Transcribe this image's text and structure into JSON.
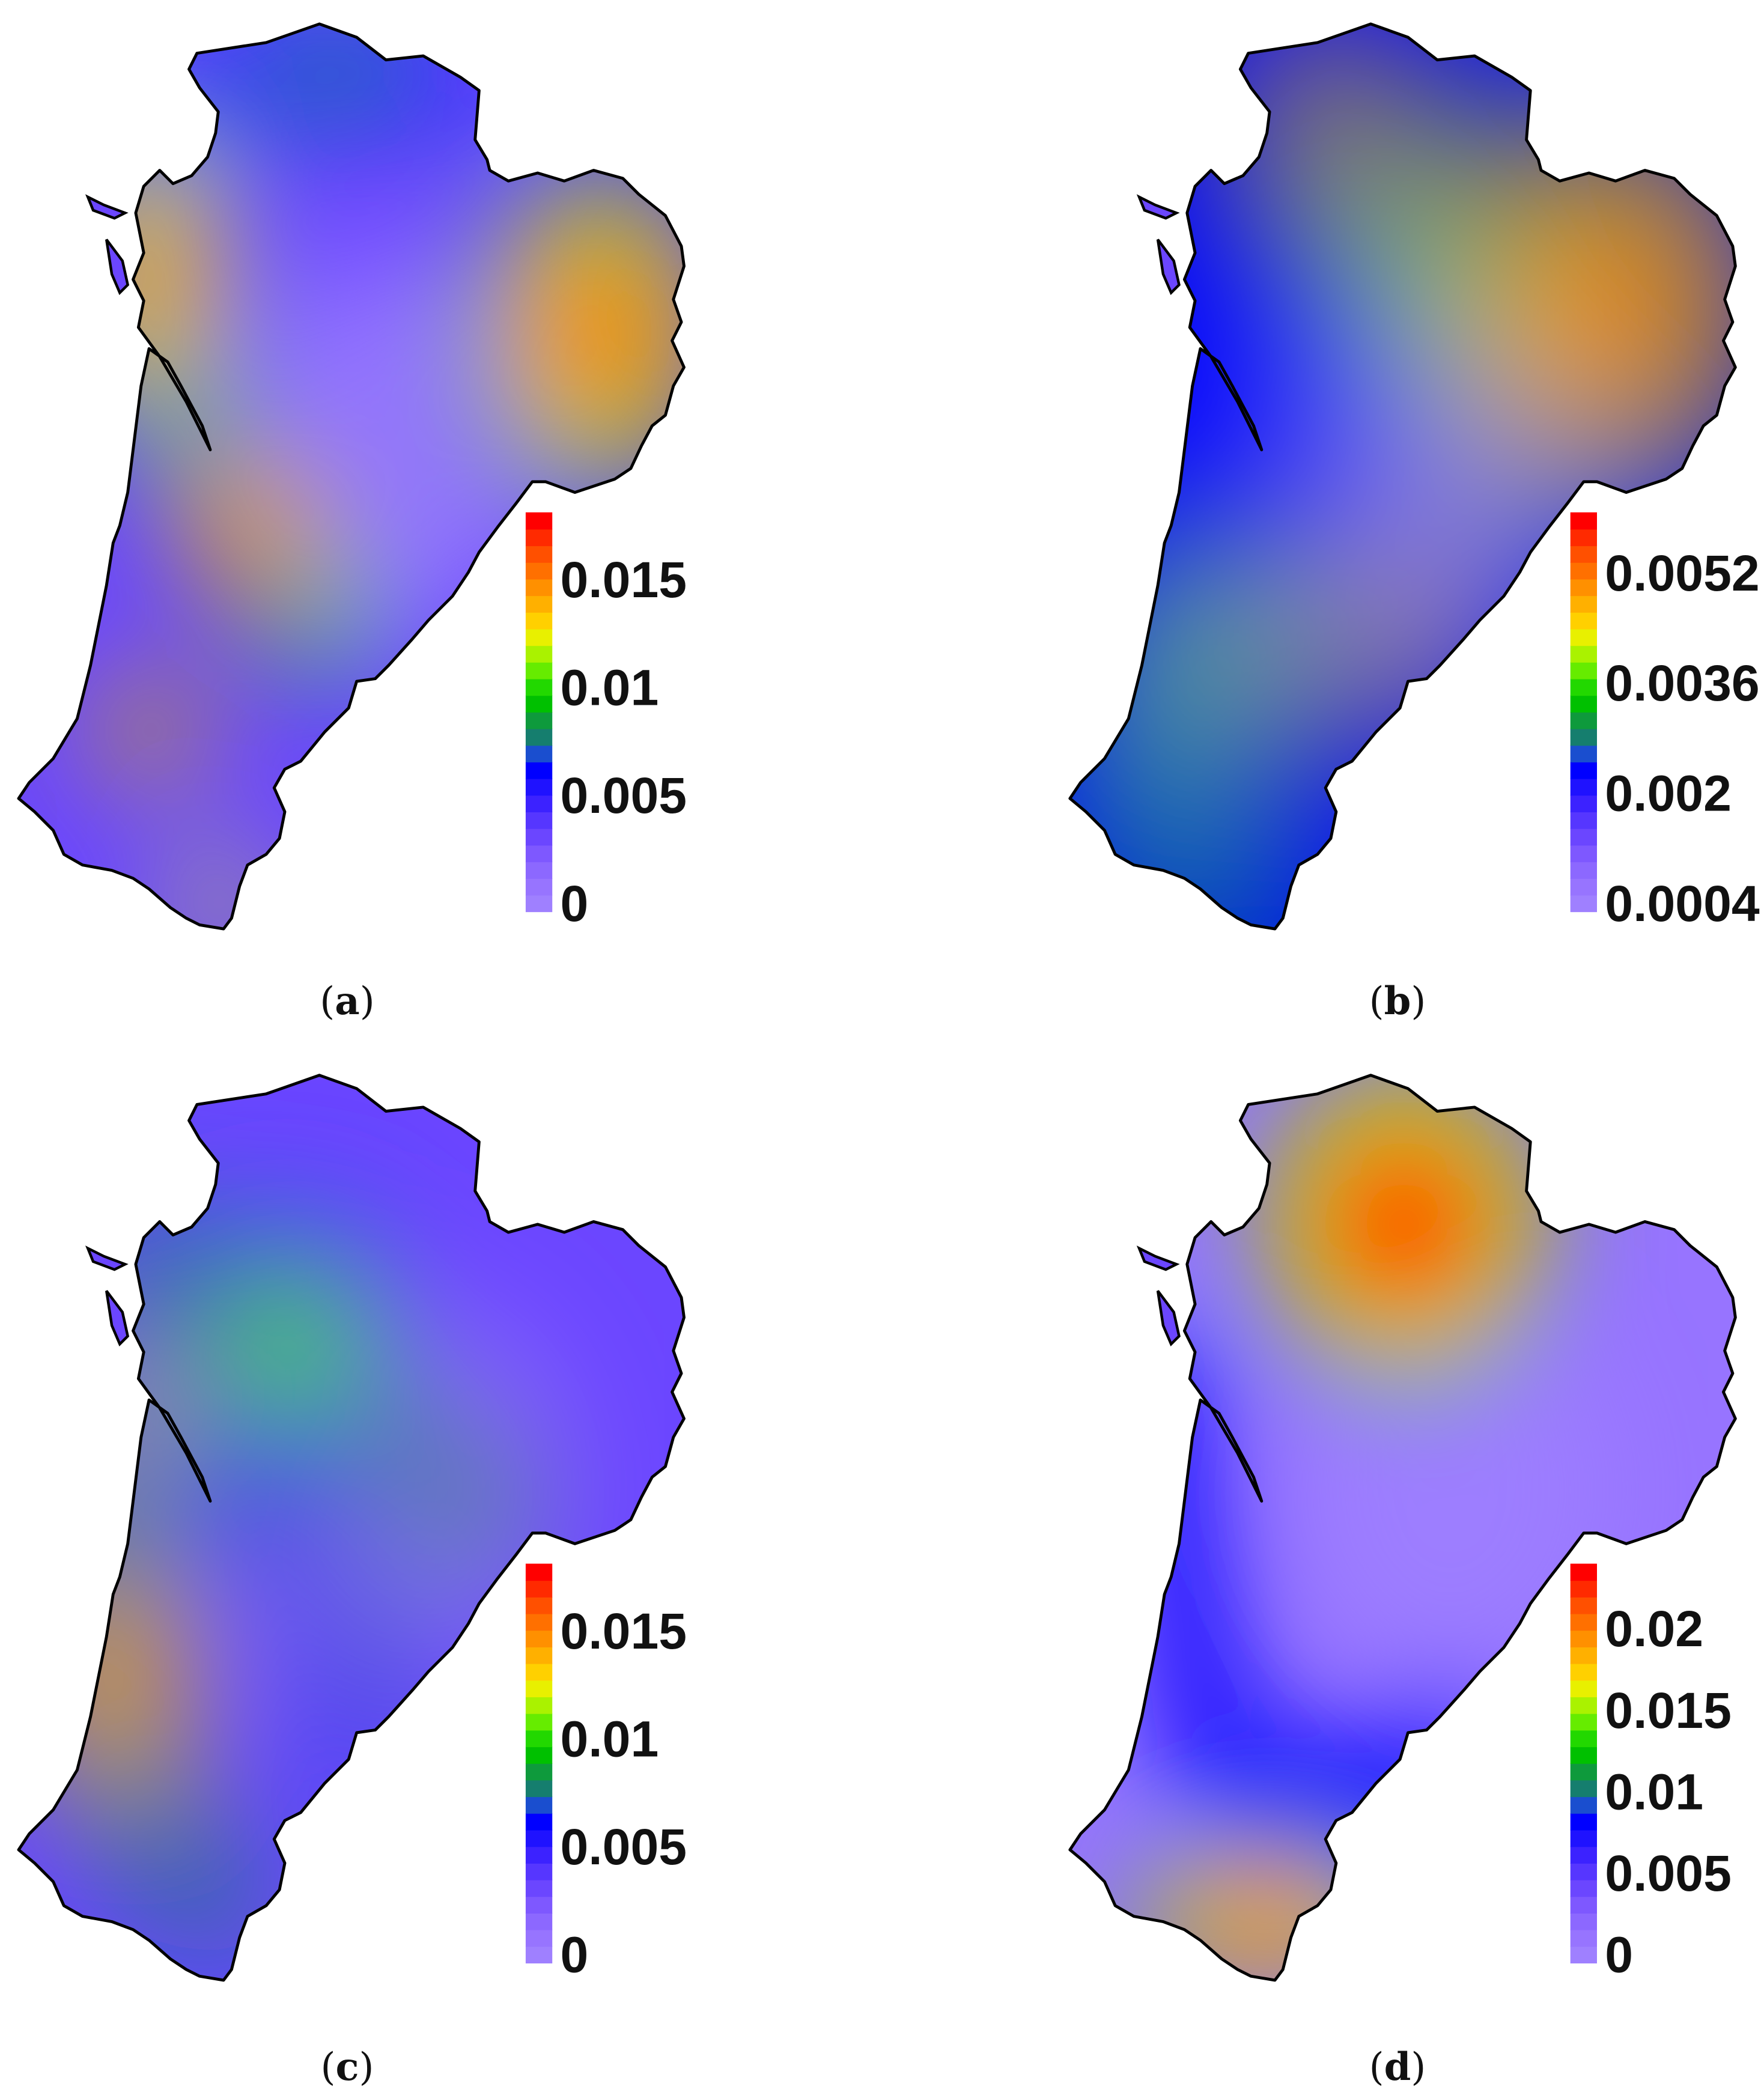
{
  "panels": [
    {
      "id": "a",
      "label": "a",
      "colorbar": {
        "min": 0,
        "max": 0.0185,
        "ticks": [
          {
            "value": 0,
            "label": "0"
          },
          {
            "value": 0.005,
            "label": "0.005"
          },
          {
            "value": 0.01,
            "label": "0.01"
          },
          {
            "value": 0.015,
            "label": "0.015"
          }
        ]
      },
      "hotspots": [
        {
          "name": "north-tip",
          "level": 0.45
        },
        {
          "name": "west-coast",
          "level": 0.85
        },
        {
          "name": "east",
          "level": 0.9
        },
        {
          "name": "center-diagonal",
          "level": 0.95
        },
        {
          "name": "southwest-spot",
          "level": 1.0
        },
        {
          "name": "south-tip",
          "level": 0.85
        }
      ]
    },
    {
      "id": "b",
      "label": "b",
      "colorbar": {
        "min": 0.0004,
        "max": 0.0062,
        "ticks": [
          {
            "value": 0.0004,
            "label": "0.0004"
          },
          {
            "value": 0.002,
            "label": "0.002"
          },
          {
            "value": 0.0036,
            "label": "0.0036"
          },
          {
            "value": 0.0052,
            "label": "0.0052"
          }
        ]
      },
      "hotspots": [
        {
          "name": "north",
          "level": 0.95
        },
        {
          "name": "east",
          "level": 1.0
        },
        {
          "name": "southeast",
          "level": 0.9
        },
        {
          "name": "southwest",
          "level": 0.65
        }
      ]
    },
    {
      "id": "c",
      "label": "c",
      "colorbar": {
        "min": 0,
        "max": 0.0185,
        "ticks": [
          {
            "value": 0,
            "label": "0"
          },
          {
            "value": 0.005,
            "label": "0.005"
          },
          {
            "value": 0.01,
            "label": "0.01"
          },
          {
            "value": 0.015,
            "label": "0.015"
          }
        ]
      },
      "hotspots": [
        {
          "name": "center-north",
          "level": 0.6
        },
        {
          "name": "west-coast",
          "level": 0.8
        },
        {
          "name": "southwest",
          "level": 0.9
        }
      ]
    },
    {
      "id": "d",
      "label": "d",
      "colorbar": {
        "min": 0,
        "max": 0.0245,
        "ticks": [
          {
            "value": 0,
            "label": "0"
          },
          {
            "value": 0.005,
            "label": "0.005"
          },
          {
            "value": 0.01,
            "label": "0.01"
          },
          {
            "value": 0.015,
            "label": "0.015"
          },
          {
            "value": 0.02,
            "label": "0.02"
          }
        ]
      },
      "hotspots": [
        {
          "name": "north",
          "level": 1.0
        },
        {
          "name": "south",
          "level": 0.9
        }
      ]
    }
  ]
}
